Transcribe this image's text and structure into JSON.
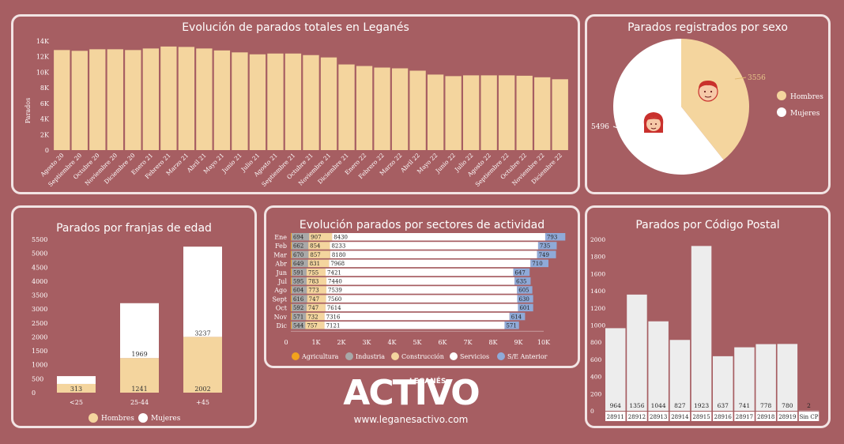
{
  "charts": {
    "evolucion": {
      "title": "Evolución de parados totales en Leganés",
      "ylabel": "Parados",
      "y_ticks": [
        "0",
        "2K",
        "4K",
        "6K",
        "8K",
        "10K",
        "12K",
        "14K"
      ],
      "ylim": [
        0,
        14000
      ],
      "type": "bar",
      "categories": [
        "Agosto 20",
        "Septiembre 20",
        "Octubre 20",
        "Noviembre 20",
        "Diciembre 20",
        "Enero 21",
        "Febrero 21",
        "Marzo 21",
        "Abril 21",
        "Mayo 21",
        "Junio 21",
        "Julio 21",
        "Agosto 21",
        "Septiembre 21",
        "Octubre 21",
        "Noviembre 21",
        "Diciembre 21",
        "Enero 22",
        "Febrero 22",
        "Marzo 22",
        "Abril 22",
        "Mayo 22",
        "Junio 22",
        "Julio 22",
        "Agosto 22",
        "Septiembre 22",
        "Octubre 22",
        "Noviembre 22",
        "Diciembre 22"
      ],
      "values": [
        12850,
        12750,
        12950,
        12950,
        12850,
        13050,
        13300,
        13250,
        13050,
        12800,
        12550,
        12300,
        12400,
        12400,
        12200,
        11900,
        11000,
        10800,
        10600,
        10500,
        10200,
        9700,
        9500,
        9600,
        9600,
        9600,
        9550,
        9350,
        9100
      ]
    },
    "sexo": {
      "title": "Parados registrados por sexo",
      "type": "pie",
      "legend": [
        "Hombres",
        "Mujeres"
      ],
      "values": [
        3556,
        5496
      ],
      "value_labels": [
        "3556",
        "5496"
      ]
    },
    "edad": {
      "title": "Parados por franjas de edad",
      "type": "bar",
      "stacked": true,
      "y_ticks": [
        "0",
        "500",
        "1000",
        "1500",
        "2000",
        "2500",
        "3000",
        "3500",
        "4000",
        "4500",
        "5000",
        "5500"
      ],
      "ylim": [
        0,
        5500
      ],
      "categories": [
        "<25",
        "25-44",
        "+45"
      ],
      "legend": [
        "Hombres",
        "Mujeres"
      ],
      "hombres": [
        313,
        1241,
        2002
      ],
      "mujeres": [
        280,
        1969,
        3237
      ],
      "hombres_labels": [
        "313",
        "1241",
        "2002"
      ],
      "mujeres_labels": [
        "",
        "1969",
        "3237"
      ]
    },
    "sectores": {
      "title": "Evolución parados por sectores de actividad",
      "type": "bar",
      "stacked": true,
      "horizontal": true,
      "x_ticks": [
        "0",
        "1K",
        "2K",
        "3K",
        "4K",
        "5K",
        "6K",
        "7K",
        "8K",
        "9K",
        "10K"
      ],
      "xlim": [
        0,
        10000
      ],
      "months": [
        "Ene",
        "Feb",
        "Mar",
        "Abr",
        "Jun",
        "Jul",
        "Ago",
        "Sept",
        "Oct",
        "Nov",
        "Dic"
      ],
      "legend": [
        "Agricultura",
        "Industria",
        "Construcción",
        "Servicios",
        "S/E Anterior"
      ],
      "agricultura": [
        30,
        30,
        30,
        30,
        30,
        30,
        30,
        30,
        30,
        30,
        30
      ],
      "industria": [
        694,
        662,
        670,
        649,
        591,
        595,
        604,
        616,
        592,
        571,
        544
      ],
      "construccion": [
        907,
        854,
        857,
        831,
        755,
        783,
        773,
        747,
        747,
        732,
        757
      ],
      "servicios": [
        8430,
        8233,
        8180,
        7968,
        7421,
        7440,
        7539,
        7560,
        7614,
        7316,
        7121
      ],
      "se_anterior": [
        793,
        735,
        749,
        710,
        647,
        635,
        605,
        630,
        601,
        614,
        571
      ],
      "industria_labels": [
        "694",
        "662",
        "670",
        "649",
        "591",
        "595",
        "604",
        "616",
        "592",
        "571",
        "544"
      ],
      "construccion_labels": [
        "907",
        "854",
        "857",
        "831",
        "755",
        "783",
        "773",
        "747",
        "747",
        "732",
        "757"
      ],
      "servicios_labels": [
        "8430",
        "8233",
        "8180",
        "7968",
        "7421",
        "7440",
        "7539",
        "7560",
        "7614",
        "7316",
        "7121"
      ],
      "se_labels": [
        "793",
        "735",
        "749",
        "710",
        "647",
        "635",
        "605",
        "630",
        "601",
        "614",
        "571"
      ]
    },
    "cp": {
      "title": "Parados por Código Postal",
      "type": "bar",
      "y_ticks": [
        "0",
        "200",
        "400",
        "600",
        "800",
        "1000",
        "1200",
        "1400",
        "1600",
        "1800",
        "2000"
      ],
      "ylim": [
        0,
        2000
      ],
      "categories": [
        "28911",
        "28912",
        "28913",
        "28914",
        "28915",
        "28916",
        "28917",
        "28918",
        "28919",
        "Sin CP"
      ],
      "values": [
        964,
        1356,
        1044,
        827,
        1923,
        637,
        741,
        778,
        780,
        2
      ],
      "value_labels": [
        "964",
        "1356",
        "1044",
        "827",
        "1923",
        "637",
        "741",
        "778",
        "780",
        "2"
      ]
    }
  },
  "colors": {
    "background": "#a65e62",
    "bar": "#f4d59e",
    "white": "#ffffff",
    "agricultura": "#f3a21c",
    "industria": "#a8a8a8",
    "se_anterior": "#8faad8",
    "cp_bar": "#ededed"
  },
  "brand": {
    "logo": "ACTIVO",
    "logo_sub": "LEGANÉS",
    "url": "www.leganesactivo.com"
  }
}
